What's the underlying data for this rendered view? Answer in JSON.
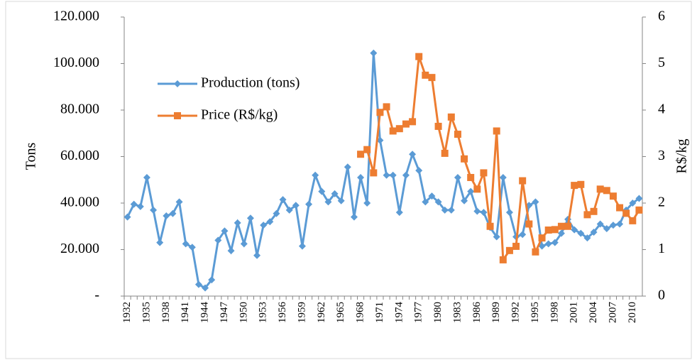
{
  "chart_data": {
    "type": "line",
    "categories": [
      "1932",
      null,
      null,
      "1935",
      null,
      null,
      "1938",
      null,
      null,
      "1941",
      null,
      null,
      "1944",
      null,
      null,
      "1947",
      null,
      null,
      "1950",
      null,
      null,
      "1953",
      null,
      null,
      "1956",
      null,
      null,
      "1959",
      null,
      null,
      "1962",
      null,
      null,
      "1965",
      null,
      null,
      "1968",
      null,
      null,
      "1971",
      null,
      null,
      "1974",
      null,
      null,
      "1977",
      null,
      null,
      "1980",
      null,
      null,
      "1983",
      null,
      null,
      "1986",
      null,
      null,
      "1989",
      null,
      null,
      "1992",
      null,
      null,
      "1995",
      null,
      null,
      "1998",
      null,
      null,
      "2001",
      null,
      null,
      "2004",
      null,
      null,
      "2007",
      null,
      null,
      "2010",
      null
    ],
    "series": [
      {
        "name": "Production (tons)",
        "color": "#5b9bd5",
        "marker": "diamond",
        "values": [
          34000,
          39500,
          38500,
          51000,
          37000,
          23000,
          34500,
          35500,
          40500,
          22500,
          21000,
          5000,
          3500,
          7000,
          24000,
          28000,
          19500,
          31500,
          22500,
          33500,
          17500,
          30500,
          32000,
          35500,
          41500,
          37000,
          39000,
          21500,
          39500,
          52000,
          45000,
          40500,
          44000,
          41000,
          55500,
          34000,
          51000,
          40000,
          104500,
          67000,
          52000,
          52000,
          36000,
          52000,
          61000,
          54000,
          40500,
          43000,
          40500,
          37000,
          37000,
          51000,
          41000,
          45000,
          36500,
          36000,
          29500,
          25500,
          51000,
          36000,
          25500,
          26500,
          39000,
          40500,
          21500,
          22500,
          23000,
          27000,
          33000,
          28500,
          27000,
          25000,
          27500,
          31000,
          29000,
          30500,
          31000,
          37000,
          40000,
          42000
        ]
      },
      {
        "name": "Price (R$/kg)",
        "color": "#ed7d31",
        "marker": "square",
        "axis": "y2",
        "values": [
          null,
          null,
          null,
          null,
          null,
          null,
          null,
          null,
          null,
          null,
          null,
          null,
          null,
          null,
          null,
          null,
          null,
          null,
          null,
          null,
          null,
          null,
          null,
          null,
          null,
          null,
          null,
          null,
          null,
          null,
          null,
          null,
          null,
          null,
          null,
          null,
          3.05,
          3.15,
          2.65,
          3.95,
          4.07,
          3.55,
          3.6,
          3.7,
          3.75,
          5.15,
          4.75,
          4.7,
          3.65,
          3.07,
          3.85,
          3.48,
          2.95,
          2.55,
          2.3,
          2.65,
          1.5,
          3.55,
          0.78,
          0.98,
          1.07,
          2.48,
          1.55,
          0.95,
          1.25,
          1.42,
          1.43,
          1.5,
          1.5,
          2.38,
          2.4,
          1.75,
          1.82,
          2.3,
          2.27,
          2.15,
          1.9,
          1.78,
          1.62,
          1.85
        ]
      }
    ],
    "y_label": "Tons",
    "y2_label": "R$/kg",
    "ylim": [
      0,
      120000
    ],
    "yticks": [
      {
        "value": 0,
        "label": "-"
      },
      {
        "value": 20000,
        "label": "20.000"
      },
      {
        "value": 40000,
        "label": "40.000"
      },
      {
        "value": 60000,
        "label": "60.000"
      },
      {
        "value": 80000,
        "label": "80.000"
      },
      {
        "value": 100000,
        "label": "100.000"
      },
      {
        "value": 120000,
        "label": "120.000"
      }
    ],
    "y2lim": [
      0,
      6
    ],
    "y2ticks": [
      0,
      1,
      2,
      3,
      4,
      5,
      6
    ],
    "grid": false,
    "legend": "upper left"
  }
}
